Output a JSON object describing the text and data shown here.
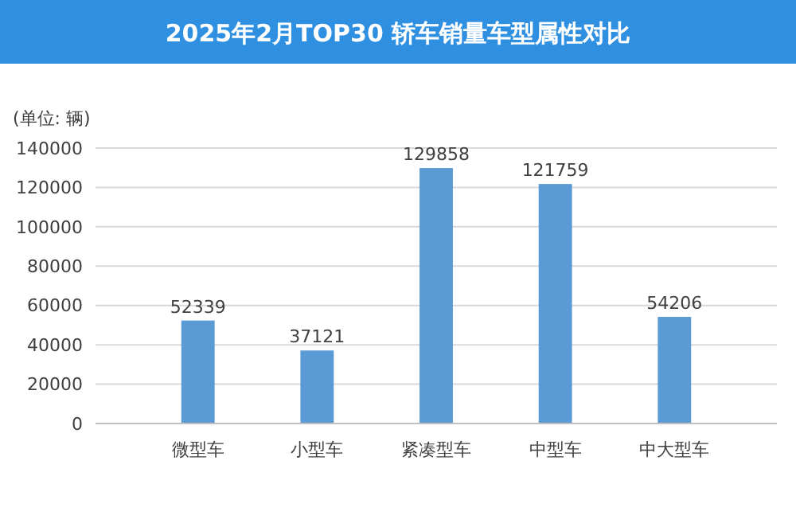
{
  "chart_data": {
    "type": "bar",
    "title": "2025年2月TOP30 轿车销量车型属性对比",
    "ylabel": "(单位: 辆)",
    "categories": [
      "微型车",
      "小型车",
      "紧凑型车",
      "中型车",
      "中大型车"
    ],
    "values": [
      52339,
      37121,
      129858,
      121759,
      54206
    ],
    "color": "#5b9bd5",
    "ylim": [
      0,
      140000
    ],
    "yticks": [
      0,
      20000,
      40000,
      60000,
      80000,
      100000,
      120000,
      140000
    ],
    "grid": "y",
    "data_labels": true
  }
}
